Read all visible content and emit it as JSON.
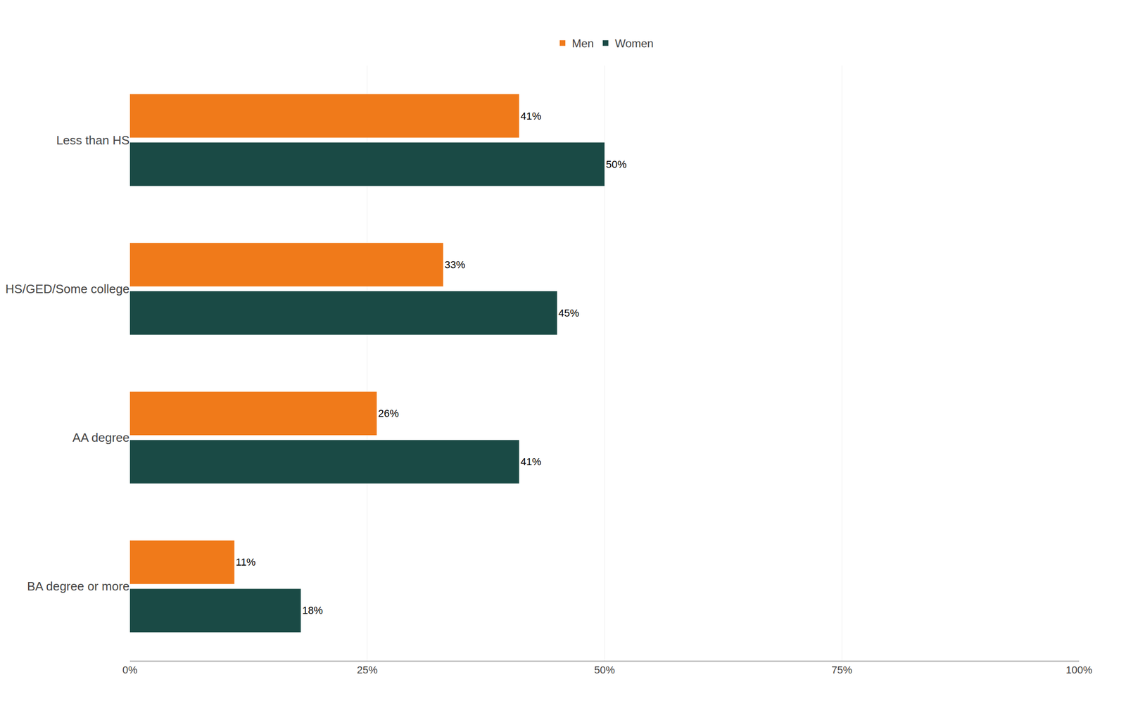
{
  "chart_data": {
    "type": "bar",
    "orientation": "horizontal",
    "categories": [
      "Less than HS",
      "HS/GED/Some college",
      "AA degree",
      "BA degree or more"
    ],
    "series": [
      {
        "name": "Men",
        "color": "#F07A1A",
        "values": [
          41,
          33,
          26,
          11
        ],
        "value_labels": [
          "41%",
          "33%",
          "26%",
          "11%"
        ]
      },
      {
        "name": "Women",
        "color": "#1A4A45",
        "values": [
          50,
          45,
          41,
          18
        ],
        "value_labels": [
          "50%",
          "45%",
          "41%",
          "18%"
        ]
      }
    ],
    "xlim": [
      0,
      100
    ],
    "xticks": [
      {
        "value": 0,
        "label": "0%"
      },
      {
        "value": 25,
        "label": "25%"
      },
      {
        "value": 50,
        "label": "50%"
      },
      {
        "value": 75,
        "label": "75%"
      },
      {
        "value": 100,
        "label": "100%"
      }
    ],
    "grid": true,
    "legend": "top",
    "data_labels": true
  }
}
